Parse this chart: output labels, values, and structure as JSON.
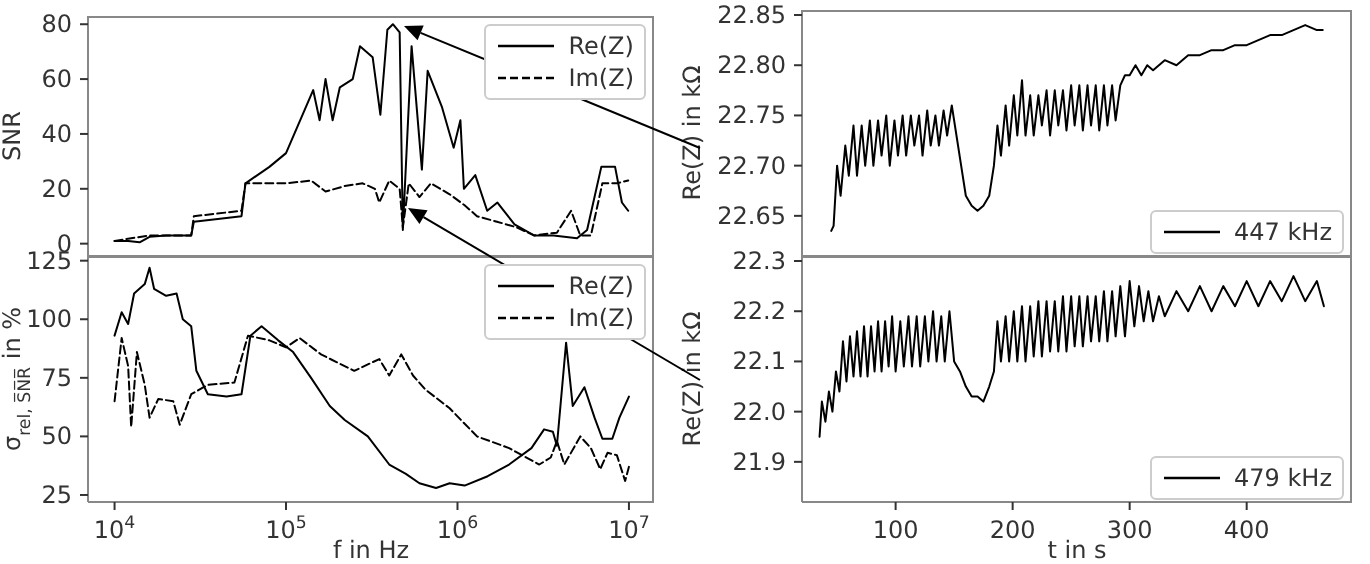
{
  "chart_data": [
    {
      "type": "line",
      "ylabel": "S̅N̅R̅",
      "log": "x",
      "xlim": [
        7000,
        14000000
      ],
      "xticks": [
        {
          "value": 10000,
          "label": null
        },
        {
          "value": 100000,
          "label": null
        },
        {
          "value": 1000000,
          "label": null
        },
        {
          "value": 10000000,
          "label": null
        }
      ],
      "ylim": [
        -4.5,
        83
      ],
      "yticks": [
        0,
        20,
        40,
        60,
        80
      ],
      "tick_labels": "y",
      "legend": "top right",
      "series": [
        {
          "name": "Re(Z)",
          "color": "#000000",
          "line_style": "solid",
          "x": [
            10000,
            12000,
            14000,
            16000,
            20000,
            28000,
            29000,
            40000,
            55000,
            58000,
            80000,
            100000,
            144000,
            157000,
            170000,
            187000,
            206000,
            245000,
            270000,
            294000,
            320000,
            355000,
            390000,
            420000,
            460000,
            480000,
            540000,
            620000,
            670000,
            810000,
            950000,
            1040000,
            1090000,
            1270000,
            1490000,
            1710000,
            2150000,
            2790000,
            3630000,
            4980000,
            5700000,
            6900000,
            8300000,
            9100000,
            9900000
          ],
          "values": [
            1,
            1,
            0.5,
            2.5,
            3,
            3,
            8,
            9,
            10,
            22,
            28,
            33,
            56,
            45,
            60,
            45,
            57,
            60,
            72,
            70,
            68,
            47,
            78,
            80,
            77,
            5,
            72,
            27,
            63,
            50,
            35,
            45,
            20,
            25,
            12,
            15,
            7,
            3,
            3,
            2,
            5,
            28,
            28,
            15,
            12
          ]
        },
        {
          "name": "Im(Z)",
          "color": "#000000",
          "line_style": "dashed",
          "x": [
            10000,
            16000,
            28000,
            29000,
            55000,
            58000,
            100000,
            140000,
            170000,
            220000,
            280000,
            330000,
            350000,
            400000,
            460000,
            480000,
            520000,
            600000,
            700000,
            900000,
            1100000,
            1300000,
            1700000,
            2200000,
            2800000,
            3800000,
            4600000,
            5200000,
            6000000,
            7000000,
            8500000,
            9900000
          ],
          "values": [
            1,
            3,
            3,
            10,
            12,
            22,
            22,
            23,
            19,
            21,
            22,
            20,
            15,
            23,
            20,
            6,
            22,
            17,
            22,
            18,
            14,
            10,
            8,
            6,
            3,
            4,
            12,
            3,
            3,
            22,
            22,
            23
          ]
        }
      ]
    },
    {
      "type": "line",
      "xlabel": "f in Hz",
      "ylabel": "σ$_{rel, S̅N̅R̅}$ in %",
      "log": "x",
      "xlim": [
        7000,
        14000000
      ],
      "xticks": [
        {
          "value": 10000,
          "label": "10$^{4}$"
        },
        {
          "value": 100000,
          "label": "10$^{5}$"
        },
        {
          "value": 1000000,
          "label": "10$^{6}$"
        },
        {
          "value": 10000000,
          "label": "10$^{7}$"
        }
      ],
      "ylim": [
        22,
        127
      ],
      "yticks": [
        25,
        50,
        75,
        100,
        125
      ],
      "legend": "top right",
      "series": [
        {
          "name": "Re(Z)",
          "color": "#000000",
          "line_style": "solid",
          "x": [
            10000,
            11000,
            12000,
            13000,
            15000,
            16000,
            17000,
            20000,
            23000,
            25000,
            28000,
            30000,
            35000,
            45000,
            55000,
            62000,
            72000,
            90000,
            110000,
            140000,
            180000,
            220000,
            300000,
            400000,
            500000,
            600000,
            750000,
            900000,
            1100000,
            1500000,
            2000000,
            2700000,
            3200000,
            3600000,
            3800000,
            4300000,
            4700000,
            5500000,
            6300000,
            7000000,
            8000000,
            8800000,
            10000000
          ],
          "values": [
            93,
            103,
            98,
            111,
            115,
            122,
            113,
            110,
            111,
            100,
            97,
            78,
            68,
            67,
            68,
            93,
            97,
            91,
            86,
            75,
            63,
            57,
            50,
            38,
            34,
            30,
            28,
            30,
            29,
            33,
            38,
            45,
            53,
            52,
            46,
            90,
            63,
            71,
            58,
            49,
            49,
            58,
            67
          ]
        },
        {
          "name": "Im(Z)",
          "color": "#000000",
          "line_style": "dashed",
          "x": [
            10000,
            11000,
            12000,
            12500,
            13500,
            15000,
            16000,
            18000,
            22000,
            24000,
            28000,
            35000,
            50000,
            60000,
            80000,
            100000,
            120000,
            160000,
            250000,
            350000,
            400000,
            470000,
            550000,
            650000,
            900000,
            1300000,
            2000000,
            3000000,
            3500000,
            3800000,
            4200000,
            5200000,
            6000000,
            6800000,
            7500000,
            8500000,
            9500000,
            10000000
          ],
          "values": [
            65,
            92,
            80,
            54,
            86,
            72,
            58,
            66,
            65,
            55,
            68,
            72,
            73,
            93,
            91,
            88,
            92,
            85,
            78,
            83,
            76,
            85,
            76,
            70,
            62,
            50,
            45,
            38,
            41,
            48,
            38,
            50,
            45,
            36,
            43,
            42,
            31,
            37
          ]
        }
      ]
    },
    {
      "type": "line",
      "ylabel": "Re(Z) in kΩ",
      "xlim": [
        20,
        490
      ],
      "xticks": [
        100,
        200,
        300,
        400
      ],
      "ylim": [
        22.61,
        22.855
      ],
      "yticks": [
        22.65,
        {
          "value": 22.7,
          "label": "22.70"
        },
        22.75,
        {
          "value": 22.8,
          "label": "22.80"
        },
        22.85
      ],
      "tick_labels": "y",
      "legend": "bottom right",
      "series": [
        {
          "name": "447 kHz",
          "color": "#000000",
          "line_style": "solid",
          "x": [
            45,
            47,
            50,
            53,
            57,
            60,
            64,
            67,
            71,
            74,
            78,
            81,
            85,
            88,
            92,
            95,
            99,
            102,
            106,
            109,
            113,
            116,
            120,
            123,
            127,
            130,
            134,
            137,
            141,
            144,
            148,
            152,
            156,
            160,
            165,
            170,
            175,
            180,
            184,
            187,
            190,
            194,
            197,
            201,
            204,
            208,
            211,
            215,
            218,
            222,
            225,
            229,
            232,
            236,
            239,
            243,
            246,
            250,
            253,
            257,
            260,
            264,
            267,
            271,
            274,
            278,
            281,
            285,
            288,
            292,
            296,
            300,
            305,
            310,
            315,
            320,
            330,
            340,
            350,
            360,
            370,
            380,
            390,
            400,
            410,
            420,
            430,
            440,
            450,
            460,
            465
          ],
          "values": [
            22.635,
            22.64,
            22.7,
            22.67,
            22.72,
            22.69,
            22.74,
            22.69,
            22.74,
            22.7,
            22.745,
            22.7,
            22.745,
            22.71,
            22.75,
            22.7,
            22.745,
            22.71,
            22.75,
            22.71,
            22.75,
            22.72,
            22.75,
            22.71,
            22.755,
            22.72,
            22.75,
            22.72,
            22.755,
            22.73,
            22.76,
            22.73,
            22.7,
            22.67,
            22.66,
            22.655,
            22.66,
            22.67,
            22.7,
            22.74,
            22.71,
            22.76,
            22.72,
            22.77,
            22.73,
            22.785,
            22.73,
            22.77,
            22.73,
            22.77,
            22.74,
            22.775,
            22.73,
            22.775,
            22.74,
            22.775,
            22.735,
            22.78,
            22.74,
            22.78,
            22.735,
            22.78,
            22.74,
            22.78,
            22.735,
            22.78,
            22.74,
            22.78,
            22.745,
            22.78,
            22.79,
            22.79,
            22.8,
            22.79,
            22.8,
            22.795,
            22.805,
            22.8,
            22.81,
            22.81,
            22.815,
            22.815,
            22.82,
            22.82,
            22.825,
            22.83,
            22.83,
            22.835,
            22.84,
            22.835,
            22.835
          ]
        }
      ]
    },
    {
      "type": "line",
      "xlabel": "t in s",
      "ylabel": "Re(Z) in kΩ",
      "xlim": [
        20,
        490
      ],
      "xticks": [
        100,
        200,
        300,
        400
      ],
      "ylim": [
        21.82,
        22.31
      ],
      "yticks": [
        21.9,
        {
          "value": 22,
          "label": "22.0"
        },
        22.1,
        22.2,
        22.3
      ],
      "legend": "bottom right",
      "series": [
        {
          "name": "479 kHz",
          "color": "#000000",
          "line_style": "solid",
          "x": [
            35,
            37,
            40,
            43,
            46,
            49,
            52,
            55,
            58,
            61,
            64,
            67,
            70,
            73,
            76,
            79,
            82,
            85,
            88,
            91,
            94,
            97,
            100,
            104,
            107,
            111,
            114,
            118,
            121,
            125,
            128,
            132,
            135,
            139,
            142,
            146,
            150,
            155,
            160,
            165,
            170,
            175,
            180,
            184,
            187,
            190,
            194,
            197,
            201,
            204,
            208,
            211,
            215,
            218,
            222,
            225,
            229,
            232,
            236,
            239,
            243,
            246,
            250,
            253,
            257,
            260,
            264,
            267,
            271,
            274,
            278,
            281,
            285,
            288,
            292,
            296,
            300,
            304,
            308,
            312,
            316,
            320,
            325,
            330,
            340,
            350,
            360,
            370,
            380,
            390,
            400,
            410,
            420,
            430,
            440,
            450,
            460,
            466
          ],
          "values": [
            21.95,
            22.02,
            21.98,
            22.04,
            22,
            22.08,
            22.04,
            22.14,
            22.06,
            22.15,
            22.07,
            22.16,
            22.07,
            22.17,
            22.07,
            22.17,
            22.08,
            22.18,
            22.08,
            22.18,
            22.09,
            22.19,
            22.08,
            22.18,
            22.09,
            22.19,
            22.09,
            22.19,
            22.09,
            22.19,
            22.1,
            22.2,
            22.1,
            22.19,
            22.1,
            22.2,
            22.1,
            22.08,
            22.05,
            22.03,
            22.03,
            22.02,
            22.05,
            22.08,
            22.18,
            22.1,
            22.19,
            22.1,
            22.2,
            22.1,
            22.21,
            22.1,
            22.21,
            22.11,
            22.22,
            22.11,
            22.22,
            22.12,
            22.22,
            22.12,
            22.23,
            22.12,
            22.23,
            22.13,
            22.23,
            22.13,
            22.23,
            22.14,
            22.23,
            22.14,
            22.24,
            22.14,
            22.24,
            22.15,
            22.25,
            22.15,
            22.26,
            22.17,
            22.25,
            22.18,
            22.24,
            22.18,
            22.23,
            22.19,
            22.24,
            22.2,
            22.25,
            22.2,
            22.25,
            22.21,
            22.26,
            22.21,
            22.26,
            22.22,
            22.27,
            22.22,
            22.26,
            22.21
          ]
        }
      ]
    }
  ]
}
